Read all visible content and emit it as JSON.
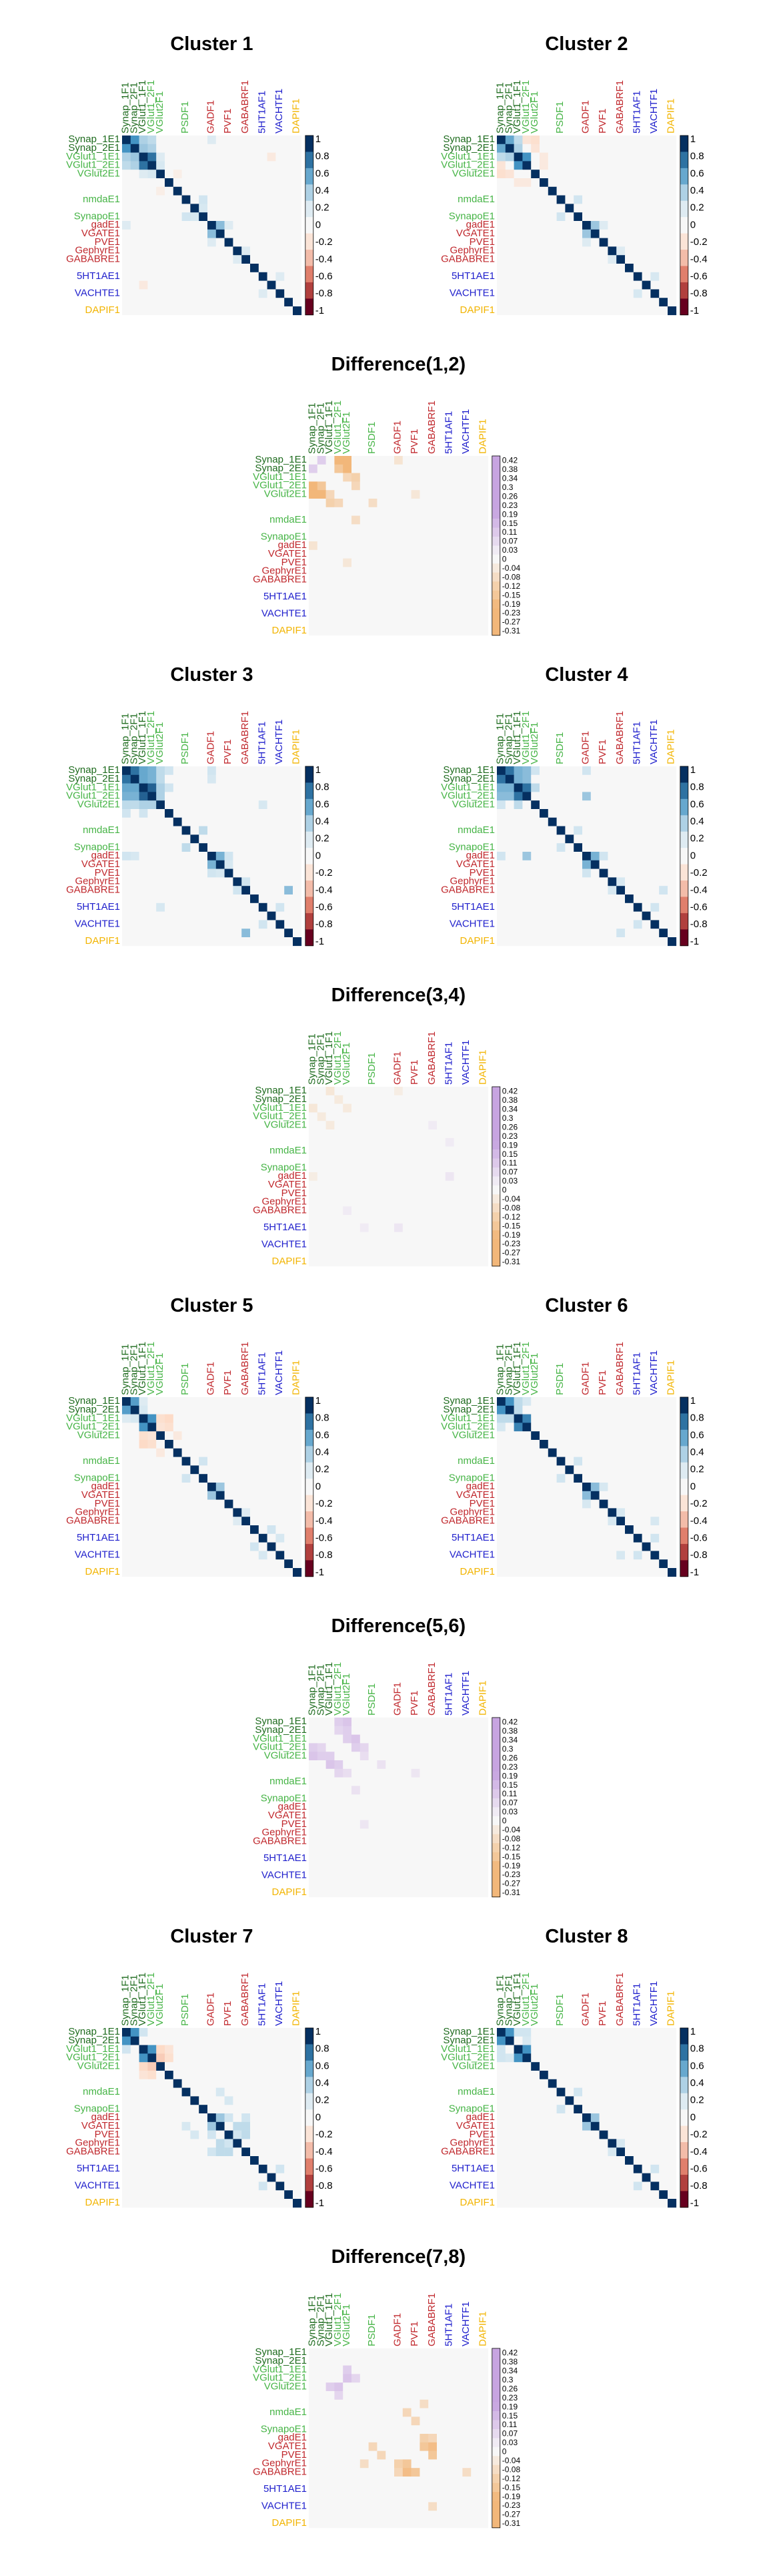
{
  "label_colors": {
    "pre": "#1e6b1e",
    "excit": "#46b446",
    "inhib": "#c0282d",
    "mod": "#1f1fcc",
    "other": "#f2b400"
  },
  "diverging_colors": {
    "neg_dark": "#67001f",
    "neg_mid": "#d6604d",
    "neg_light": "#fddbc7",
    "zero": "#f7f7f7",
    "pos_light": "#d1e5f0",
    "pos_mid": "#4393c3",
    "pos_dark": "#053061",
    "diff_pos": "#c7a4e0",
    "diff_neg": "#f2b77a"
  },
  "correlation_colorbar": {
    "ticks": [
      "1",
      "0.8",
      "0.6",
      "0.4",
      "0.2",
      "0",
      "-0.2",
      "-0.4",
      "-0.6",
      "-0.8",
      "-1"
    ]
  },
  "difference_colorbar": {
    "ticks": [
      "0.42",
      "0.38",
      "0.34",
      "0.3",
      "0.26",
      "0.23",
      "0.19",
      "0.15",
      "0.11",
      "0.07",
      "0.03",
      "0",
      "-0.04",
      "-0.08",
      "-0.12",
      "-0.15",
      "-0.19",
      "-0.23",
      "-0.27",
      "-0.31"
    ]
  },
  "row_labels": [
    {
      "text": "Synap_1E1",
      "group": "pre"
    },
    {
      "text": "Synap_2E1",
      "group": "pre"
    },
    {
      "text": "VGlut1_1E1",
      "group": "excit"
    },
    {
      "text": "VGlut1_2E1",
      "group": "excit"
    },
    {
      "text": "VGlut2E1",
      "group": "excit"
    },
    {
      "text": "",
      "group": "excit"
    },
    {
      "text": "",
      "group": "excit"
    },
    {
      "text": "nmdaE1",
      "group": "excit"
    },
    {
      "text": "",
      "group": "excit"
    },
    {
      "text": "SynapoE1",
      "group": "excit"
    },
    {
      "text": "gadE1",
      "group": "inhib"
    },
    {
      "text": "VGATE1",
      "group": "inhib"
    },
    {
      "text": "PVE1",
      "group": "inhib"
    },
    {
      "text": "GephyrE1",
      "group": "inhib"
    },
    {
      "text": "GABABRE1",
      "group": "inhib"
    },
    {
      "text": "",
      "group": "other"
    },
    {
      "text": "5HT1AE1",
      "group": "mod"
    },
    {
      "text": "",
      "group": "mod"
    },
    {
      "text": "VACHTE1",
      "group": "mod"
    },
    {
      "text": "",
      "group": "other"
    },
    {
      "text": "DAPIF1",
      "group": "other"
    }
  ],
  "col_labels": [
    {
      "text": "Synap_1F1",
      "group": "pre"
    },
    {
      "text": "Synap_2F1",
      "group": "pre"
    },
    {
      "text": "VGlut1_1F1",
      "group": "pre"
    },
    {
      "text": "VGlut1_2F1",
      "group": "excit"
    },
    {
      "text": "VGlut2F1",
      "group": "excit"
    },
    {
      "text": "",
      "group": "excit"
    },
    {
      "text": "",
      "group": "excit"
    },
    {
      "text": "PSDF1",
      "group": "excit"
    },
    {
      "text": "",
      "group": "excit"
    },
    {
      "text": "",
      "group": "excit"
    },
    {
      "text": "GADF1",
      "group": "inhib"
    },
    {
      "text": "",
      "group": "inhib"
    },
    {
      "text": "PVF1",
      "group": "inhib"
    },
    {
      "text": "",
      "group": "inhib"
    },
    {
      "text": "GABABRF1",
      "group": "inhib"
    },
    {
      "text": "",
      "group": "mod"
    },
    {
      "text": "5HT1AF1",
      "group": "mod"
    },
    {
      "text": "",
      "group": "mod"
    },
    {
      "text": "VACHTF1",
      "group": "mod"
    },
    {
      "text": "",
      "group": "other"
    },
    {
      "text": "DAPIF1",
      "group": "other"
    }
  ],
  "panel_titles": {
    "c1": "Cluster 1",
    "c2": "Cluster 2",
    "d12": "Difference(1,2)",
    "c3": "Cluster 3",
    "c4": "Cluster 4",
    "d34": "Difference(3,4)",
    "c5": "Cluster 5",
    "c6": "Cluster 6",
    "d56": "Difference(5,6)",
    "c7": "Cluster 7",
    "c8": "Cluster 8",
    "d78": "Difference(7,8)"
  },
  "chart_data": [
    {
      "type": "heatmap",
      "title": "Cluster 1",
      "n": 21,
      "scale": [
        -1,
        1
      ],
      "cells": [
        {
          "r": 0,
          "c": 1,
          "v": 0.7
        },
        {
          "r": 0,
          "c": 2,
          "v": 0.4
        },
        {
          "r": 0,
          "c": 3,
          "v": 0.35
        },
        {
          "r": 1,
          "c": 2,
          "v": 0.45
        },
        {
          "r": 1,
          "c": 3,
          "v": 0.4
        },
        {
          "r": 2,
          "c": 3,
          "v": 0.8
        },
        {
          "r": 2,
          "c": 4,
          "v": 0.2
        },
        {
          "r": 3,
          "c": 4,
          "v": 0.25
        },
        {
          "r": 7,
          "c": 9,
          "v": 0.3
        },
        {
          "r": 8,
          "c": 9,
          "v": 0.25
        },
        {
          "r": 10,
          "c": 11,
          "v": 0.5
        },
        {
          "r": 10,
          "c": 12,
          "v": 0.2
        },
        {
          "r": 13,
          "c": 14,
          "v": 0.2
        },
        {
          "r": 0,
          "c": 10,
          "v": 0.2
        },
        {
          "r": 2,
          "c": 17,
          "v": -0.15
        },
        {
          "r": 4,
          "c": 6,
          "v": -0.1
        },
        {
          "r": 16,
          "c": 18,
          "v": 0.2
        }
      ]
    },
    {
      "type": "heatmap",
      "title": "Cluster 2",
      "n": 21,
      "scale": [
        -1,
        1
      ],
      "cells": [
        {
          "r": 0,
          "c": 1,
          "v": 0.6
        },
        {
          "r": 0,
          "c": 2,
          "v": 0.35
        },
        {
          "r": 1,
          "c": 2,
          "v": 0.4
        },
        {
          "r": 2,
          "c": 3,
          "v": 0.7
        },
        {
          "r": 0,
          "c": 3,
          "v": -0.2
        },
        {
          "r": 0,
          "c": 4,
          "v": -0.25
        },
        {
          "r": 1,
          "c": 4,
          "v": -0.2
        },
        {
          "r": 2,
          "c": 5,
          "v": -0.15
        },
        {
          "r": 3,
          "c": 5,
          "v": -0.15
        },
        {
          "r": 7,
          "c": 9,
          "v": 0.3
        },
        {
          "r": 10,
          "c": 11,
          "v": 0.45
        },
        {
          "r": 10,
          "c": 12,
          "v": 0.2
        },
        {
          "r": 13,
          "c": 14,
          "v": 0.2
        },
        {
          "r": 16,
          "c": 18,
          "v": 0.25
        }
      ]
    },
    {
      "type": "heatmap",
      "title": "Difference(1,2)",
      "n": 21,
      "scale": [
        -0.31,
        0.42
      ],
      "cells": [
        {
          "r": 0,
          "c": 1,
          "v": 0.1
        },
        {
          "r": 0,
          "c": 3,
          "v": -0.2
        },
        {
          "r": 0,
          "c": 4,
          "v": -0.25
        },
        {
          "r": 1,
          "c": 3,
          "v": -0.15
        },
        {
          "r": 1,
          "c": 4,
          "v": -0.2
        },
        {
          "r": 2,
          "c": 5,
          "v": -0.12
        },
        {
          "r": 3,
          "c": 5,
          "v": -0.1
        },
        {
          "r": 2,
          "c": 4,
          "v": -0.1
        },
        {
          "r": 5,
          "c": 7,
          "v": -0.08
        },
        {
          "r": 0,
          "c": 10,
          "v": -0.06
        },
        {
          "r": 4,
          "c": 12,
          "v": -0.05
        }
      ]
    },
    {
      "type": "heatmap",
      "title": "Cluster 3",
      "n": 21,
      "scale": [
        -1,
        1
      ],
      "cells": [
        {
          "r": 0,
          "c": 1,
          "v": 0.8
        },
        {
          "r": 0,
          "c": 2,
          "v": 0.6
        },
        {
          "r": 0,
          "c": 3,
          "v": 0.55
        },
        {
          "r": 1,
          "c": 2,
          "v": 0.6
        },
        {
          "r": 1,
          "c": 3,
          "v": 0.55
        },
        {
          "r": 2,
          "c": 3,
          "v": 0.85
        },
        {
          "r": 0,
          "c": 4,
          "v": 0.35
        },
        {
          "r": 1,
          "c": 4,
          "v": 0.35
        },
        {
          "r": 2,
          "c": 4,
          "v": 0.4
        },
        {
          "r": 3,
          "c": 4,
          "v": 0.4
        },
        {
          "r": 0,
          "c": 5,
          "v": 0.3
        },
        {
          "r": 2,
          "c": 5,
          "v": 0.3
        },
        {
          "r": 0,
          "c": 10,
          "v": 0.3
        },
        {
          "r": 1,
          "c": 10,
          "v": 0.25
        },
        {
          "r": 7,
          "c": 9,
          "v": 0.35
        },
        {
          "r": 10,
          "c": 11,
          "v": 0.55
        },
        {
          "r": 10,
          "c": 12,
          "v": 0.3
        },
        {
          "r": 11,
          "c": 12,
          "v": 0.25
        },
        {
          "r": 13,
          "c": 14,
          "v": 0.3
        },
        {
          "r": 16,
          "c": 18,
          "v": 0.3
        },
        {
          "r": 14,
          "c": 19,
          "v": 0.5
        },
        {
          "r": 4,
          "c": 16,
          "v": 0.25
        }
      ]
    },
    {
      "type": "heatmap",
      "title": "Cluster 4",
      "n": 21,
      "scale": [
        -1,
        1
      ],
      "cells": [
        {
          "r": 0,
          "c": 1,
          "v": 0.8
        },
        {
          "r": 0,
          "c": 2,
          "v": 0.55
        },
        {
          "r": 0,
          "c": 3,
          "v": 0.5
        },
        {
          "r": 1,
          "c": 2,
          "v": 0.55
        },
        {
          "r": 1,
          "c": 3,
          "v": 0.5
        },
        {
          "r": 2,
          "c": 3,
          "v": 0.8
        },
        {
          "r": 0,
          "c": 4,
          "v": 0.3
        },
        {
          "r": 2,
          "c": 4,
          "v": 0.35
        },
        {
          "r": 0,
          "c": 10,
          "v": 0.3
        },
        {
          "r": 7,
          "c": 9,
          "v": 0.3
        },
        {
          "r": 10,
          "c": 11,
          "v": 0.55
        },
        {
          "r": 10,
          "c": 12,
          "v": 0.3
        },
        {
          "r": 13,
          "c": 14,
          "v": 0.25
        },
        {
          "r": 16,
          "c": 18,
          "v": 0.3
        },
        {
          "r": 14,
          "c": 19,
          "v": 0.3
        },
        {
          "r": 3,
          "c": 10,
          "v": 0.45
        }
      ]
    },
    {
      "type": "heatmap",
      "title": "Difference(3,4)",
      "n": 21,
      "scale": [
        -0.31,
        0.42
      ],
      "cells": [
        {
          "r": 0,
          "c": 2,
          "v": -0.05
        },
        {
          "r": 1,
          "c": 3,
          "v": -0.04
        },
        {
          "r": 2,
          "c": 4,
          "v": -0.04
        },
        {
          "r": 0,
          "c": 10,
          "v": -0.03
        },
        {
          "r": 6,
          "c": 16,
          "v": 0.03
        },
        {
          "r": 10,
          "c": 16,
          "v": 0.04
        },
        {
          "r": 4,
          "c": 14,
          "v": 0.03
        }
      ]
    },
    {
      "type": "heatmap",
      "title": "Cluster 5",
      "n": 21,
      "scale": [
        -1,
        1
      ],
      "cells": [
        {
          "r": 0,
          "c": 1,
          "v": 0.65
        },
        {
          "r": 0,
          "c": 2,
          "v": 0.2
        },
        {
          "r": 2,
          "c": 3,
          "v": 0.7
        },
        {
          "r": 1,
          "c": 2,
          "v": 0.25
        },
        {
          "r": 2,
          "c": 4,
          "v": -0.25
        },
        {
          "r": 2,
          "c": 5,
          "v": -0.3
        },
        {
          "r": 3,
          "c": 4,
          "v": -0.2
        },
        {
          "r": 3,
          "c": 5,
          "v": -0.25
        },
        {
          "r": 4,
          "c": 6,
          "v": -0.15
        },
        {
          "r": 7,
          "c": 9,
          "v": 0.3
        },
        {
          "r": 10,
          "c": 11,
          "v": 0.45
        },
        {
          "r": 13,
          "c": 14,
          "v": 0.2
        },
        {
          "r": 16,
          "c": 18,
          "v": 0.25
        },
        {
          "r": 15,
          "c": 17,
          "v": 0.3
        }
      ]
    },
    {
      "type": "heatmap",
      "title": "Cluster 6",
      "n": 21,
      "scale": [
        -1,
        1
      ],
      "cells": [
        {
          "r": 0,
          "c": 1,
          "v": 0.7
        },
        {
          "r": 0,
          "c": 2,
          "v": 0.35
        },
        {
          "r": 1,
          "c": 2,
          "v": 0.35
        },
        {
          "r": 2,
          "c": 3,
          "v": 0.75
        },
        {
          "r": 0,
          "c": 3,
          "v": 0.25
        },
        {
          "r": 7,
          "c": 9,
          "v": 0.3
        },
        {
          "r": 10,
          "c": 11,
          "v": 0.5
        },
        {
          "r": 10,
          "c": 12,
          "v": 0.25
        },
        {
          "r": 13,
          "c": 14,
          "v": 0.25
        },
        {
          "r": 16,
          "c": 18,
          "v": 0.3
        },
        {
          "r": 14,
          "c": 18,
          "v": 0.25
        }
      ]
    },
    {
      "type": "heatmap",
      "title": "Difference(5,6)",
      "n": 21,
      "scale": [
        -0.31,
        0.42
      ],
      "cells": [
        {
          "r": 0,
          "c": 3,
          "v": 0.1
        },
        {
          "r": 0,
          "c": 4,
          "v": 0.12
        },
        {
          "r": 1,
          "c": 3,
          "v": 0.08
        },
        {
          "r": 1,
          "c": 4,
          "v": 0.1
        },
        {
          "r": 2,
          "c": 4,
          "v": 0.1
        },
        {
          "r": 2,
          "c": 5,
          "v": 0.12
        },
        {
          "r": 3,
          "c": 5,
          "v": 0.1
        },
        {
          "r": 3,
          "c": 6,
          "v": 0.08
        },
        {
          "r": 4,
          "c": 6,
          "v": 0.06
        },
        {
          "r": 5,
          "c": 8,
          "v": 0.05
        },
        {
          "r": 6,
          "c": 12,
          "v": 0.04
        }
      ]
    },
    {
      "type": "heatmap",
      "title": "Cluster 7",
      "n": 21,
      "scale": [
        -1,
        1
      ],
      "cells": [
        {
          "r": 0,
          "c": 1,
          "v": 0.7
        },
        {
          "r": 0,
          "c": 2,
          "v": 0.3
        },
        {
          "r": 2,
          "c": 3,
          "v": 0.7
        },
        {
          "r": 2,
          "c": 4,
          "v": -0.3
        },
        {
          "r": 3,
          "c": 4,
          "v": -0.35
        },
        {
          "r": 3,
          "c": 5,
          "v": -0.25
        },
        {
          "r": 2,
          "c": 5,
          "v": -0.2
        },
        {
          "r": 10,
          "c": 11,
          "v": 0.45
        },
        {
          "r": 10,
          "c": 12,
          "v": 0.3
        },
        {
          "r": 11,
          "c": 13,
          "v": 0.35
        },
        {
          "r": 12,
          "c": 14,
          "v": 0.35
        },
        {
          "r": 10,
          "c": 14,
          "v": 0.3
        },
        {
          "r": 11,
          "c": 14,
          "v": 0.35
        },
        {
          "r": 12,
          "c": 13,
          "v": 0.3
        },
        {
          "r": 7,
          "c": 11,
          "v": 0.25
        },
        {
          "r": 8,
          "c": 12,
          "v": 0.25
        },
        {
          "r": 16,
          "c": 18,
          "v": 0.3
        }
      ]
    },
    {
      "type": "heatmap",
      "title": "Cluster 8",
      "n": 21,
      "scale": [
        -1,
        1
      ],
      "cells": [
        {
          "r": 0,
          "c": 1,
          "v": 0.7
        },
        {
          "r": 0,
          "c": 2,
          "v": 0.3
        },
        {
          "r": 2,
          "c": 3,
          "v": 0.7
        },
        {
          "r": 0,
          "c": 3,
          "v": 0.3
        },
        {
          "r": 1,
          "c": 3,
          "v": 0.25
        },
        {
          "r": 7,
          "c": 9,
          "v": 0.3
        },
        {
          "r": 10,
          "c": 11,
          "v": 0.45
        },
        {
          "r": 13,
          "c": 14,
          "v": 0.25
        },
        {
          "r": 16,
          "c": 18,
          "v": 0.3
        }
      ]
    },
    {
      "type": "heatmap",
      "title": "Difference(7,8)",
      "n": 21,
      "scale": [
        -0.31,
        0.42
      ],
      "cells": [
        {
          "r": 2,
          "c": 4,
          "v": 0.1
        },
        {
          "r": 3,
          "c": 4,
          "v": 0.12
        },
        {
          "r": 3,
          "c": 5,
          "v": 0.08
        },
        {
          "r": 10,
          "c": 13,
          "v": -0.12
        },
        {
          "r": 11,
          "c": 13,
          "v": -0.15
        },
        {
          "r": 11,
          "c": 14,
          "v": -0.18
        },
        {
          "r": 12,
          "c": 14,
          "v": -0.15
        },
        {
          "r": 10,
          "c": 14,
          "v": -0.1
        },
        {
          "r": 7,
          "c": 11,
          "v": -0.1
        },
        {
          "r": 8,
          "c": 12,
          "v": -0.1
        },
        {
          "r": 14,
          "c": 18,
          "v": -0.08
        },
        {
          "r": 6,
          "c": 13,
          "v": -0.08
        }
      ]
    }
  ]
}
